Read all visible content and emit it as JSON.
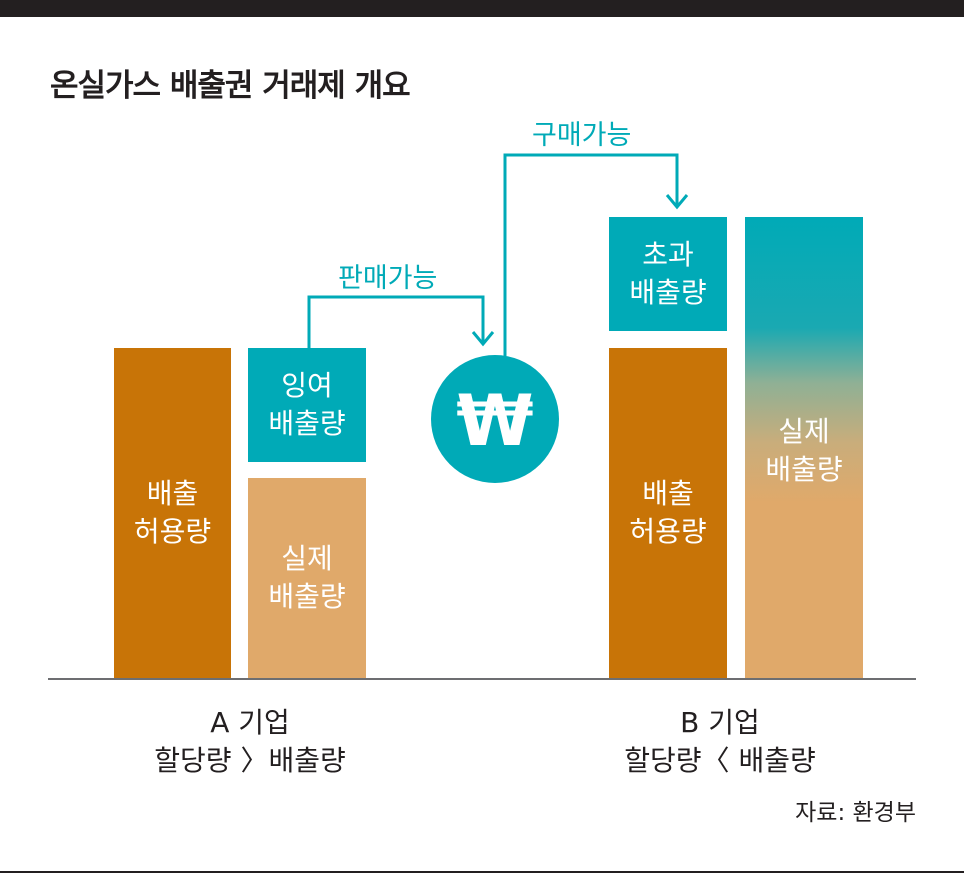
{
  "title": "온실가스 배출권 거래제 개요",
  "company_a": {
    "allowance": [
      "배출",
      "허용량"
    ],
    "surplus": [
      "잉여",
      "배출량"
    ],
    "actual": [
      "실제",
      "배출량"
    ],
    "caption": [
      "A 기업",
      "할당량 〉배출량"
    ]
  },
  "company_b": {
    "allowance": [
      "배출",
      "허용량"
    ],
    "excess": [
      "초과",
      "배출량"
    ],
    "actual": [
      "실제",
      "배출량"
    ],
    "caption": [
      "B 기업",
      "할당량〈 배출량"
    ]
  },
  "flow": {
    "sell_label": "판매가능",
    "buy_label": "구매가능",
    "currency_symbol": "₩"
  },
  "source": "자료: 환경부",
  "colors": {
    "allowance": "#c87407",
    "actual": "#e0a96a",
    "tradeable": "#00aab7",
    "header_bar": "#231f20"
  }
}
